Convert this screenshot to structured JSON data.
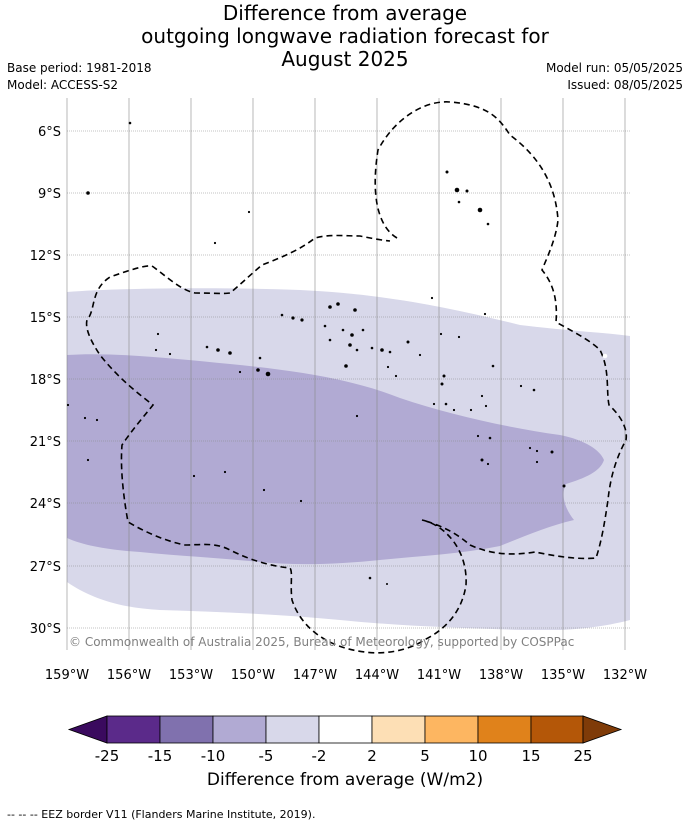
{
  "title_lines": [
    "Difference from average",
    "outgoing longwave radiation forecast for",
    "August 2025"
  ],
  "base_period": "Base period: 1981-2018",
  "model": "Model: ACCESS-S2",
  "model_run": "Model run: 05/05/2025",
  "issued": "Issued: 08/05/2025",
  "copyright": "© Commonwealth of Australia 2025, Bureau of Meteorology, supported by COSPPac",
  "lat_labels": [
    "6°S",
    "9°S",
    "12°S",
    "15°S",
    "18°S",
    "21°S",
    "24°S",
    "27°S",
    "30°S"
  ],
  "lon_labels": [
    "159°W",
    "156°W",
    "153°W",
    "150°W",
    "147°W",
    "144°W",
    "141°W",
    "138°W",
    "135°W",
    "132°W"
  ],
  "colorbar": {
    "ticks": [
      "-25",
      "-15",
      "-10",
      "-5",
      "-2",
      "2",
      "5",
      "10",
      "15",
      "25"
    ],
    "colors": [
      "#5b2a8a",
      "#8071ae",
      "#b1aad3",
      "#d8d8ea",
      "#ffffff",
      "#fddfb5",
      "#fdb661",
      "#e0821b",
      "#b45708"
    ],
    "under_color": "#3a0a5e",
    "over_color": "#7f3b08",
    "label": "Difference from average (W/m2)"
  },
  "footnote": "-- -- -- EEZ border V11 (Flanders Marine Institute, 2019)."
}
